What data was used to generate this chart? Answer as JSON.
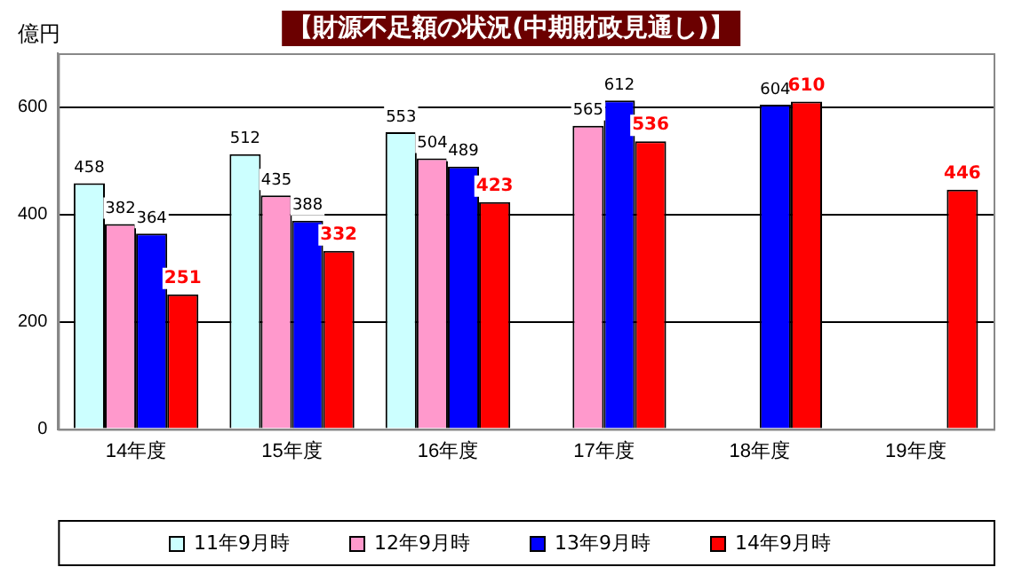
{
  "chart_data": {
    "type": "bar",
    "title": "【財源不足額の状況(中期財政見通し)】",
    "ylabel": "億円",
    "categories": [
      "14年度",
      "15年度",
      "16年度",
      "17年度",
      "18年度",
      "19年度"
    ],
    "series": [
      {
        "name": "11年9月時",
        "color": "#ccffff",
        "values": [
          458,
          512,
          553,
          null,
          null,
          null
        ]
      },
      {
        "name": "12年9月時",
        "color": "#ff99cc",
        "values": [
          382,
          435,
          504,
          565,
          null,
          null
        ]
      },
      {
        "name": "13年9月時",
        "color": "#0000ff",
        "values": [
          364,
          388,
          489,
          612,
          604,
          null
        ]
      },
      {
        "name": "14年9月時",
        "color": "#ff0000",
        "values": [
          251,
          332,
          423,
          536,
          610,
          446
        ]
      }
    ],
    "ylim": [
      0,
      700
    ],
    "yticks": [
      0,
      200,
      400,
      600
    ],
    "grid": "y",
    "legend": "bottom",
    "data_labels": true
  }
}
